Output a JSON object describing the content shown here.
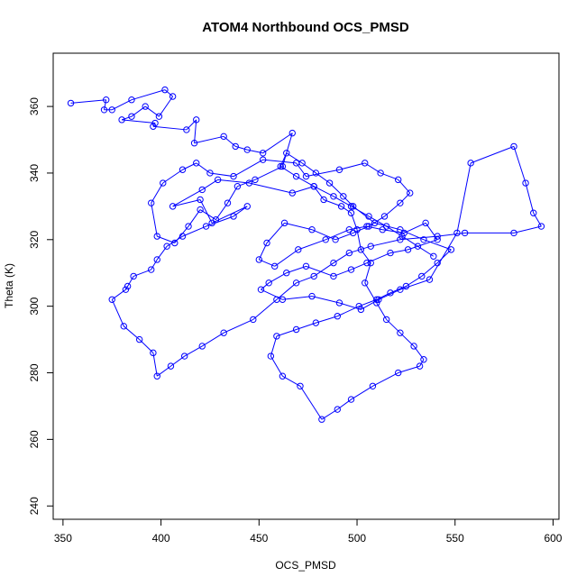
{
  "chart_data": {
    "type": "scatter",
    "title": "ATOM4 Northbound OCS_PMSD",
    "xlabel": "OCS_PMSD",
    "ylabel": "Theta (K)",
    "xlim": [
      345,
      603
    ],
    "ylim": [
      236,
      376
    ],
    "xticks": [
      350,
      400,
      450,
      500,
      550,
      600
    ],
    "yticks": [
      240,
      260,
      280,
      300,
      320,
      340,
      360
    ],
    "grid": false,
    "style": "points connected by lines",
    "color": "#0000ff",
    "series": [
      {
        "x": [
          354,
          372,
          371,
          375,
          385,
          402,
          406,
          399,
          392,
          385,
          380,
          397,
          396,
          413,
          418,
          417,
          432,
          438,
          444,
          452,
          467,
          462,
          448,
          439,
          434,
          428,
          420,
          414,
          407,
          398,
          395,
          401,
          411,
          418,
          425,
          437,
          452,
          469,
          474,
          491,
          504,
          512,
          521,
          527,
          522,
          514,
          506,
          498,
          489,
          477,
          463,
          454,
          450,
          458,
          470,
          484,
          496,
          505,
          513,
          524,
          535,
          541,
          526,
          517,
          505,
          497,
          488,
          474,
          464,
          455,
          451,
          462,
          477,
          491,
          502,
          511,
          522,
          537,
          551,
          558,
          580,
          586,
          590,
          594,
          580,
          555,
          541,
          522,
          507,
          496,
          488,
          478,
          469,
          459,
          447,
          432,
          421,
          412,
          405,
          398,
          396,
          389,
          381,
          375,
          382,
          383,
          386,
          395,
          398,
          403,
          411,
          423,
          437,
          444,
          426,
          420,
          406,
          421,
          429,
          445,
          467,
          478,
          483,
          492,
          497,
          500,
          502,
          507,
          504,
          510,
          515,
          522,
          529,
          534,
          532,
          521,
          508,
          497,
          490,
          482,
          471,
          462,
          456,
          459,
          469,
          479,
          490,
          501,
          510,
          517,
          525,
          533,
          541,
          548,
          534,
          522,
          509,
          498,
          493,
          486,
          479,
          472,
          464,
          461,
          469,
          478,
          488,
          497,
          506,
          515,
          523,
          531,
          539
        ],
        "y": [
          361,
          362,
          359,
          359,
          362,
          365,
          363,
          357,
          360,
          357,
          356,
          355,
          354,
          353,
          356,
          349,
          351,
          348,
          347,
          346,
          352,
          342,
          338,
          336,
          331,
          326,
          329,
          324,
          319,
          321,
          331,
          337,
          341,
          343,
          340,
          339,
          344,
          343,
          339,
          341,
          343,
          340,
          338,
          334,
          331,
          327,
          324,
          322,
          320,
          323,
          325,
          319,
          314,
          312,
          317,
          320,
          323,
          324,
          323,
          322,
          325,
          320,
          317,
          316,
          313,
          311,
          309,
          312,
          310,
          307,
          305,
          302,
          303,
          301,
          299,
          302,
          305,
          308,
          322,
          343,
          348,
          337,
          328,
          324,
          322,
          322,
          321,
          320,
          318,
          316,
          313,
          309,
          307,
          302,
          296,
          292,
          288,
          285,
          282,
          279,
          286,
          290,
          294,
          302,
          305,
          306,
          309,
          311,
          314,
          318,
          321,
          324,
          327,
          330,
          325,
          332,
          330,
          335,
          338,
          337,
          334,
          336,
          332,
          330,
          328,
          323,
          317,
          313,
          307,
          301,
          296,
          292,
          288,
          284,
          282,
          280,
          276,
          272,
          269,
          266,
          276,
          279,
          285,
          291,
          293,
          295,
          297,
          300,
          302,
          304,
          306,
          309,
          313,
          317,
          320,
          323,
          325,
          330,
          333,
          337,
          340,
          343,
          346,
          342,
          339,
          336,
          333,
          330,
          327,
          324,
          321,
          318,
          315
        ]
      }
    ]
  }
}
